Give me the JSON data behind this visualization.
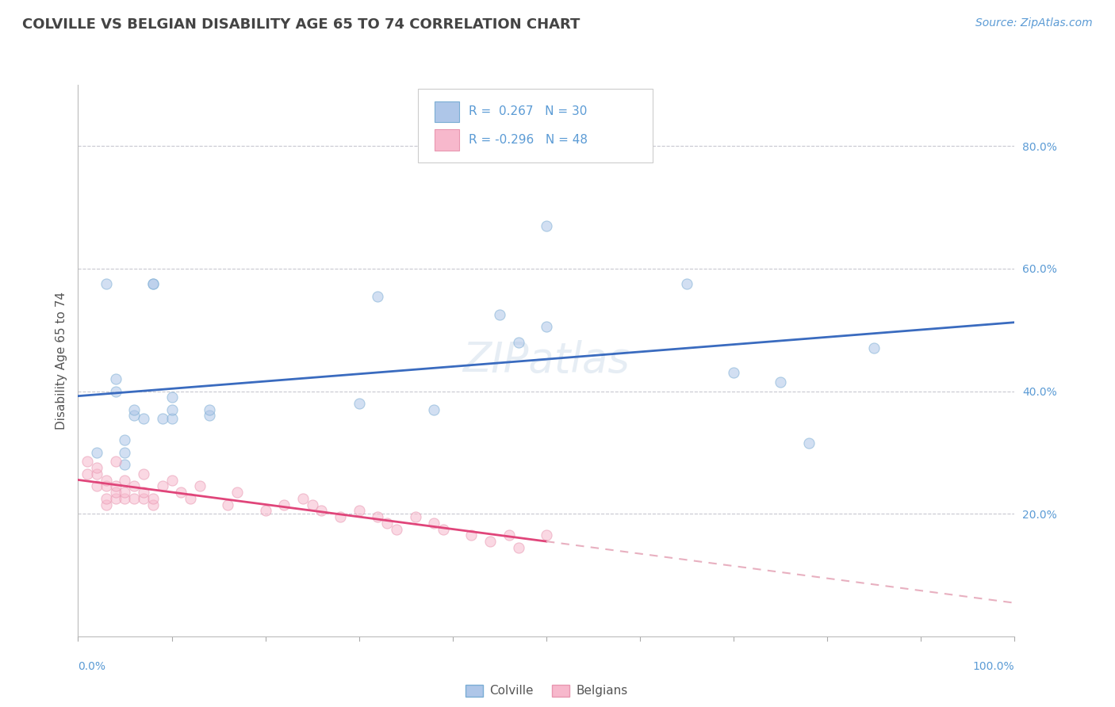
{
  "title": "COLVILLE VS BELGIAN DISABILITY AGE 65 TO 74 CORRELATION CHART",
  "source_text": "Source: ZipAtlas.com",
  "ylabel": "Disability Age 65 to 74",
  "background_color": "#ffffff",
  "plot_bg_color": "#ffffff",
  "grid_color": "#c8c8d0",
  "xlim": [
    0.0,
    1.0
  ],
  "ylim": [
    0.0,
    0.9
  ],
  "yticks": [
    0.2,
    0.4,
    0.6,
    0.8
  ],
  "ytick_labels": [
    "20.0%",
    "40.0%",
    "60.0%",
    "80.0%"
  ],
  "colville_color": "#aec6e8",
  "colville_edge": "#7aadd4",
  "belgian_color": "#f7b8cc",
  "belgian_edge": "#e896b0",
  "legend_R1": "R =  0.267",
  "legend_N1": "N = 30",
  "legend_R2": "R = -0.296",
  "legend_N2": "N = 48",
  "trend_color_colville": "#3a6bbf",
  "trend_color_belgian": "#e0457a",
  "trend_dash_color": "#e8b0c0",
  "colville_x": [
    0.02,
    0.03,
    0.04,
    0.04,
    0.05,
    0.05,
    0.05,
    0.06,
    0.06,
    0.07,
    0.08,
    0.08,
    0.09,
    0.1,
    0.1,
    0.1,
    0.14,
    0.14,
    0.3,
    0.32,
    0.38,
    0.45,
    0.47,
    0.5,
    0.5,
    0.65,
    0.7,
    0.75,
    0.78,
    0.85
  ],
  "colville_y": [
    0.3,
    0.575,
    0.4,
    0.42,
    0.28,
    0.3,
    0.32,
    0.36,
    0.37,
    0.355,
    0.575,
    0.575,
    0.355,
    0.355,
    0.37,
    0.39,
    0.36,
    0.37,
    0.38,
    0.555,
    0.37,
    0.525,
    0.48,
    0.67,
    0.505,
    0.575,
    0.43,
    0.415,
    0.315,
    0.47
  ],
  "belgian_x": [
    0.01,
    0.01,
    0.02,
    0.02,
    0.02,
    0.03,
    0.03,
    0.03,
    0.03,
    0.04,
    0.04,
    0.04,
    0.04,
    0.05,
    0.05,
    0.05,
    0.06,
    0.06,
    0.07,
    0.07,
    0.07,
    0.08,
    0.08,
    0.09,
    0.1,
    0.11,
    0.12,
    0.13,
    0.16,
    0.17,
    0.2,
    0.22,
    0.24,
    0.25,
    0.26,
    0.28,
    0.3,
    0.32,
    0.33,
    0.34,
    0.36,
    0.38,
    0.39,
    0.42,
    0.44,
    0.46,
    0.47,
    0.5
  ],
  "belgian_y": [
    0.265,
    0.285,
    0.245,
    0.265,
    0.275,
    0.215,
    0.225,
    0.245,
    0.255,
    0.225,
    0.235,
    0.245,
    0.285,
    0.225,
    0.235,
    0.255,
    0.225,
    0.245,
    0.225,
    0.235,
    0.265,
    0.215,
    0.225,
    0.245,
    0.255,
    0.235,
    0.225,
    0.245,
    0.215,
    0.235,
    0.205,
    0.215,
    0.225,
    0.215,
    0.205,
    0.195,
    0.205,
    0.195,
    0.185,
    0.175,
    0.195,
    0.185,
    0.175,
    0.165,
    0.155,
    0.165,
    0.145,
    0.165
  ],
  "marker_size": 90,
  "alpha": 0.55,
  "title_fontsize": 13,
  "label_fontsize": 11,
  "tick_fontsize": 10,
  "source_fontsize": 10,
  "legend_fontsize": 11
}
